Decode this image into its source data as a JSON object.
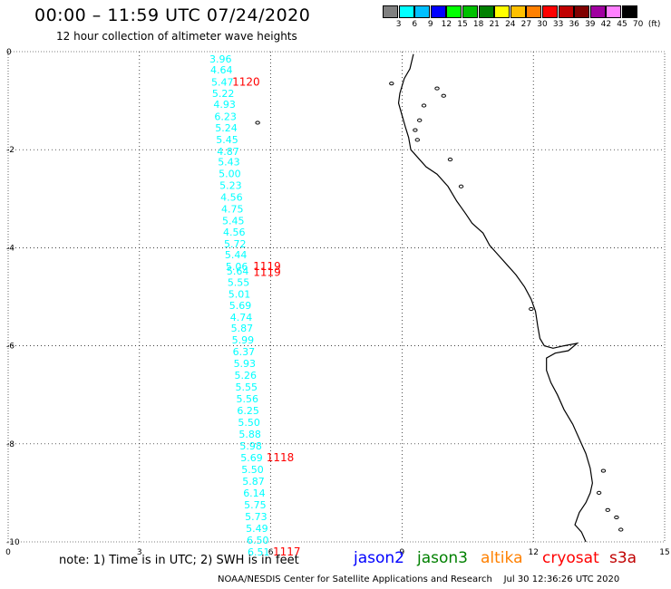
{
  "header": {
    "title": "00:00 – 11:59 UTC 07/24/2020",
    "subtitle": "12 hour collection of altimeter wave heights"
  },
  "colorbar": {
    "labels": [
      "3",
      "6",
      "9",
      "12",
      "15",
      "18",
      "21",
      "24",
      "27",
      "30",
      "33",
      "36",
      "39",
      "42",
      "45",
      "70"
    ],
    "unit": "(ft)",
    "colors": [
      "#808080",
      "#00ffff",
      "#00bfff",
      "#0000ff",
      "#00ff00",
      "#00c000",
      "#008000",
      "#ffff00",
      "#ffc000",
      "#ff8000",
      "#ff0000",
      "#c00000",
      "#800000",
      "#a000a0",
      "#ff80ff",
      "#000000"
    ]
  },
  "axes": {
    "x_ticks": [
      "0",
      "3",
      "6",
      "9",
      "12",
      "15"
    ],
    "y_ticks": [
      "0",
      "-2",
      "-4",
      "-6",
      "-8",
      "-10"
    ],
    "x_range": [
      0,
      15
    ],
    "y_range": [
      -10,
      0
    ],
    "grid": true
  },
  "chart_data": {
    "type": "scatter",
    "series": [
      {
        "name": "jason3",
        "unit": "ft",
        "points": [
          {
            "x": 4.6,
            "y": -0.15,
            "swh": "3.96"
          },
          {
            "x": 4.62,
            "y": -0.37,
            "swh": "4.64"
          },
          {
            "x": 4.64,
            "y": -0.62,
            "swh": "5.47"
          },
          {
            "x": 4.66,
            "y": -0.85,
            "swh": "5.22"
          },
          {
            "x": 4.69,
            "y": -1.07,
            "swh": "4.93"
          },
          {
            "x": 4.71,
            "y": -1.32,
            "swh": "6.23"
          },
          {
            "x": 4.73,
            "y": -1.55,
            "swh": "5.24"
          },
          {
            "x": 4.75,
            "y": -1.79,
            "swh": "5.45"
          },
          {
            "x": 4.77,
            "y": -2.03,
            "swh": "4.87"
          },
          {
            "x": 4.79,
            "y": -2.25,
            "swh": "5.43"
          },
          {
            "x": 4.81,
            "y": -2.49,
            "swh": "5.00"
          },
          {
            "x": 4.83,
            "y": -2.73,
            "swh": "5.23"
          },
          {
            "x": 4.85,
            "y": -2.97,
            "swh": "4.56"
          },
          {
            "x": 4.87,
            "y": -3.21,
            "swh": "4.75"
          },
          {
            "x": 4.89,
            "y": -3.45,
            "swh": "5.45"
          },
          {
            "x": 4.91,
            "y": -3.68,
            "swh": "4.56"
          },
          {
            "x": 4.93,
            "y": -3.92,
            "swh": "5.72"
          },
          {
            "x": 4.95,
            "y": -4.14,
            "swh": "5.44"
          },
          {
            "x": 4.97,
            "y": -4.38,
            "swh": "5.06"
          },
          {
            "x": 4.99,
            "y": -4.47,
            "swh": "5.64"
          },
          {
            "x": 5.01,
            "y": -4.7,
            "swh": "5.55"
          },
          {
            "x": 5.03,
            "y": -4.94,
            "swh": "5.01"
          },
          {
            "x": 5.05,
            "y": -5.18,
            "swh": "5.69"
          },
          {
            "x": 5.07,
            "y": -5.42,
            "swh": "4.74"
          },
          {
            "x": 5.09,
            "y": -5.64,
            "swh": "5.87"
          },
          {
            "x": 5.11,
            "y": -5.88,
            "swh": "5.99"
          },
          {
            "x": 5.13,
            "y": -6.12,
            "swh": "6.37"
          },
          {
            "x": 5.15,
            "y": -6.36,
            "swh": "5.93"
          },
          {
            "x": 5.17,
            "y": -6.6,
            "swh": "5.26"
          },
          {
            "x": 5.19,
            "y": -6.84,
            "swh": "5.55"
          },
          {
            "x": 5.21,
            "y": -7.08,
            "swh": "5.56"
          },
          {
            "x": 5.23,
            "y": -7.32,
            "swh": "6.25"
          },
          {
            "x": 5.25,
            "y": -7.56,
            "swh": "5.50"
          },
          {
            "x": 5.27,
            "y": -7.8,
            "swh": "5.88"
          },
          {
            "x": 5.29,
            "y": -8.04,
            "swh": "5.98"
          },
          {
            "x": 5.31,
            "y": -8.28,
            "swh": "5.69"
          },
          {
            "x": 5.33,
            "y": -8.52,
            "swh": "5.50"
          },
          {
            "x": 5.35,
            "y": -8.76,
            "swh": "5.87"
          },
          {
            "x": 5.37,
            "y": -9.0,
            "swh": "6.14"
          },
          {
            "x": 5.39,
            "y": -9.24,
            "swh": "5.75"
          },
          {
            "x": 5.41,
            "y": -9.48,
            "swh": "5.73"
          },
          {
            "x": 5.43,
            "y": -9.72,
            "swh": "5.49"
          },
          {
            "x": 5.45,
            "y": -9.96,
            "swh": "6.50"
          },
          {
            "x": 5.47,
            "y": -10.2,
            "swh": "6.51"
          }
        ],
        "color": "#00ffff"
      }
    ],
    "time_labels": [
      {
        "x": 5.12,
        "y": -0.62,
        "text": "1120"
      },
      {
        "x": 5.6,
        "y": -4.38,
        "text": "1119"
      },
      {
        "x": 5.6,
        "y": -4.5,
        "text": "1119"
      },
      {
        "x": 5.9,
        "y": -8.28,
        "text": "1118"
      },
      {
        "x": 6.05,
        "y": -10.2,
        "text": "1117"
      }
    ],
    "time_label_color": "#ff0000"
  },
  "coastline": {
    "main": [
      [
        9.26,
        -0.05
      ],
      [
        9.18,
        -0.35
      ],
      [
        9.05,
        -0.55
      ],
      [
        8.95,
        -0.85
      ],
      [
        8.92,
        -1.05
      ],
      [
        9.0,
        -1.3
      ],
      [
        9.08,
        -1.55
      ],
      [
        9.15,
        -1.75
      ],
      [
        9.2,
        -2.0
      ],
      [
        9.35,
        -2.15
      ],
      [
        9.55,
        -2.35
      ],
      [
        9.8,
        -2.5
      ],
      [
        10.05,
        -2.75
      ],
      [
        10.25,
        -3.05
      ],
      [
        10.45,
        -3.3
      ],
      [
        10.6,
        -3.5
      ],
      [
        10.85,
        -3.7
      ],
      [
        11.0,
        -3.95
      ],
      [
        11.2,
        -4.15
      ],
      [
        11.4,
        -4.35
      ],
      [
        11.6,
        -4.55
      ],
      [
        11.8,
        -4.8
      ],
      [
        11.95,
        -5.05
      ],
      [
        12.05,
        -5.3
      ],
      [
        12.1,
        -5.6
      ],
      [
        12.15,
        -5.85
      ],
      [
        12.25,
        -6.0
      ],
      [
        12.45,
        -6.05
      ],
      [
        12.7,
        -6.0
      ],
      [
        13.0,
        -5.95
      ],
      [
        12.8,
        -6.1
      ],
      [
        12.5,
        -6.15
      ],
      [
        12.3,
        -6.25
      ],
      [
        12.3,
        -6.5
      ],
      [
        12.4,
        -6.75
      ],
      [
        12.55,
        -7.0
      ],
      [
        12.7,
        -7.3
      ],
      [
        12.9,
        -7.6
      ],
      [
        13.05,
        -7.9
      ],
      [
        13.2,
        -8.2
      ],
      [
        13.3,
        -8.5
      ],
      [
        13.35,
        -8.8
      ],
      [
        13.3,
        -9.0
      ],
      [
        13.2,
        -9.2
      ],
      [
        13.05,
        -9.4
      ],
      [
        12.95,
        -9.65
      ],
      [
        13.1,
        -9.8
      ],
      [
        13.2,
        -10.0
      ]
    ],
    "islands": [
      [
        8.76,
        -0.65
      ],
      [
        9.8,
        -0.75
      ],
      [
        9.95,
        -0.9
      ],
      [
        9.5,
        -1.1
      ],
      [
        9.4,
        -1.4
      ],
      [
        9.3,
        -1.6
      ],
      [
        9.35,
        -1.8
      ],
      [
        10.1,
        -2.2
      ],
      [
        10.35,
        -2.75
      ],
      [
        11.95,
        -5.25
      ],
      [
        13.6,
        -8.55
      ],
      [
        13.5,
        -9.0
      ],
      [
        13.7,
        -9.35
      ],
      [
        13.9,
        -9.5
      ],
      [
        14.0,
        -9.75
      ],
      [
        5.7,
        -1.45
      ]
    ]
  },
  "footer": {
    "note": "note: 1) Time is in UTC; 2) SWH is in feet",
    "satellites": [
      {
        "label": "jason2",
        "color": "#0000ff"
      },
      {
        "label": "jason3",
        "color": "#008000"
      },
      {
        "label": "altika",
        "color": "#ff8000"
      },
      {
        "label": "cryosat",
        "color": "#ff0000"
      },
      {
        "label": "s3a",
        "color": "#c00000"
      }
    ],
    "credit": "NOAA/NESDIS Center for Satellite Applications and Research",
    "timestamp": "Jul 30 12:36:26 UTC 2020"
  }
}
